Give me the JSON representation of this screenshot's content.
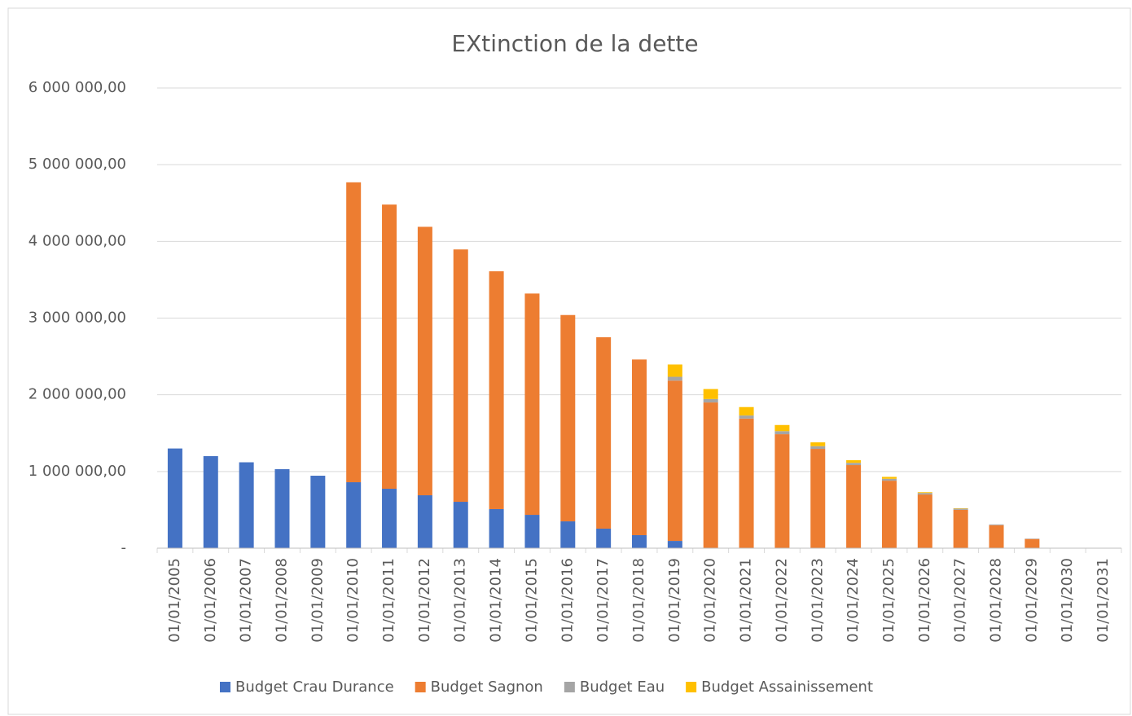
{
  "chart_data": {
    "type": "stacked-bar",
    "title": "EXtinction de la dette",
    "categories": [
      "01/01/2005",
      "01/01/2006",
      "01/01/2007",
      "01/01/2008",
      "01/01/2009",
      "01/01/2010",
      "01/01/2011",
      "01/01/2012",
      "01/01/2013",
      "01/01/2014",
      "01/01/2015",
      "01/01/2016",
      "01/01/2017",
      "01/01/2018",
      "01/01/2019",
      "01/01/2020",
      "01/01/2021",
      "01/01/2022",
      "01/01/2023",
      "01/01/2024",
      "01/01/2025",
      "01/01/2026",
      "01/01/2027",
      "01/01/2028",
      "01/01/2029",
      "01/01/2030",
      "01/01/2031"
    ],
    "series": [
      {
        "name": "Budget Crau Durance",
        "color": "#4472c4",
        "values": [
          1300000,
          1200000,
          1120000,
          1030000,
          945000,
          860000,
          775000,
          690000,
          605000,
          510000,
          435000,
          350000,
          255000,
          170000,
          95000,
          0,
          0,
          0,
          0,
          0,
          0,
          0,
          0,
          0,
          0,
          0,
          0
        ]
      },
      {
        "name": "Budget Sagnon",
        "color": "#ed7d31",
        "values": [
          0,
          0,
          0,
          0,
          0,
          3910000,
          3705000,
          3500000,
          3290000,
          3100000,
          2885000,
          2690000,
          2495000,
          2290000,
          2090000,
          1900000,
          1690000,
          1486000,
          1295000,
          1083000,
          880000,
          700000,
          500000,
          300000,
          120000,
          0,
          0
        ]
      },
      {
        "name": "Budget Eau",
        "color": "#a5a5a5",
        "values": [
          0,
          0,
          0,
          0,
          0,
          0,
          0,
          0,
          0,
          0,
          0,
          0,
          0,
          0,
          50000,
          45000,
          40000,
          40000,
          35000,
          30000,
          25000,
          20000,
          15000,
          10000,
          5000,
          0,
          0
        ]
      },
      {
        "name": "Budget Assainissement",
        "color": "#ffc000",
        "values": [
          0,
          0,
          0,
          0,
          0,
          0,
          0,
          0,
          0,
          0,
          0,
          0,
          0,
          0,
          160000,
          130000,
          110000,
          80000,
          50000,
          35000,
          25000,
          10000,
          5000,
          0,
          0,
          0,
          0
        ]
      }
    ],
    "ylim": [
      0,
      6000000
    ],
    "yticks": [
      {
        "value": 0,
        "label": "-"
      },
      {
        "value": 1000000,
        "label": "1 000 000,00"
      },
      {
        "value": 2000000,
        "label": "2 000 000,00"
      },
      {
        "value": 3000000,
        "label": "3 000 000,00"
      },
      {
        "value": 4000000,
        "label": "4 000 000,00"
      },
      {
        "value": 5000000,
        "label": "5 000 000,00"
      },
      {
        "value": 6000000,
        "label": "6 000 000,00"
      }
    ],
    "grid": true,
    "legend": "bottom"
  }
}
